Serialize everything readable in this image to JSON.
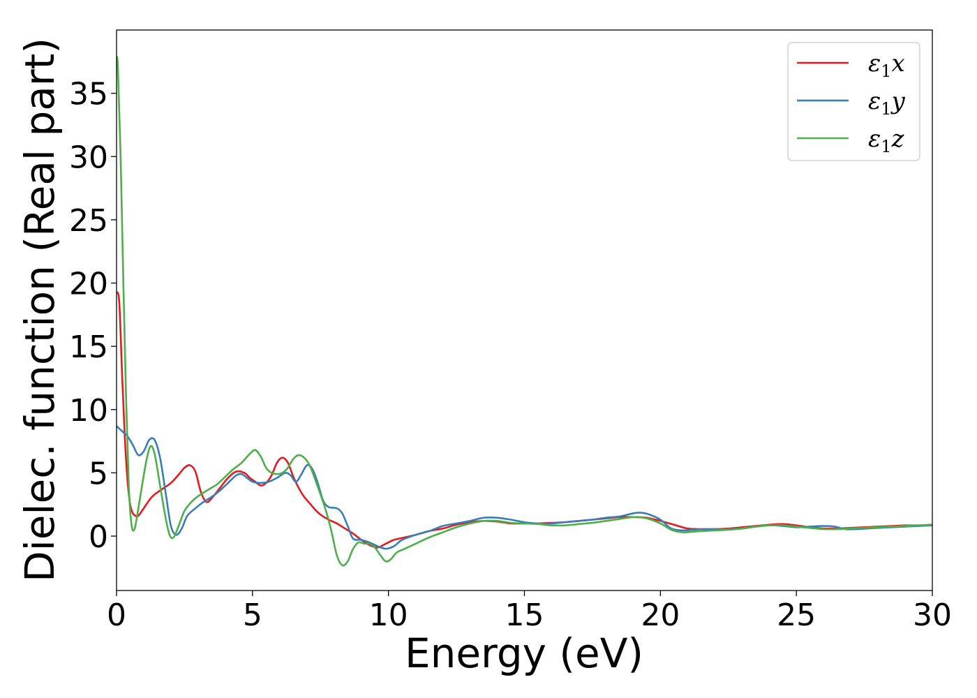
{
  "chart_data": {
    "type": "line",
    "xlabel": "Energy (eV)",
    "ylabel": "Dielec. function (Real part)",
    "xlim": [
      0,
      30
    ],
    "ylim": [
      -4.3,
      40
    ],
    "xticks": [
      0,
      5,
      10,
      15,
      20,
      25,
      30
    ],
    "yticks": [
      0,
      5,
      10,
      15,
      20,
      25,
      30,
      35
    ],
    "legend_position": "top-right",
    "grid": false,
    "series": [
      {
        "name": "ε₁x",
        "legend_base": "ε",
        "legend_sub": "1",
        "legend_suffix": "x",
        "color": "#e41a1c",
        "points": [
          [
            0,
            19.3
          ],
          [
            0.1,
            18.5
          ],
          [
            0.2,
            13
          ],
          [
            0.3,
            8
          ],
          [
            0.4,
            4.5
          ],
          [
            0.5,
            2.5
          ],
          [
            0.6,
            1.8
          ],
          [
            0.7,
            1.6
          ],
          [
            0.8,
            1.6
          ],
          [
            1.0,
            2.2
          ],
          [
            1.3,
            3.1
          ],
          [
            1.6,
            3.6
          ],
          [
            2.0,
            4.2
          ],
          [
            2.3,
            4.9
          ],
          [
            2.5,
            5.4
          ],
          [
            2.7,
            5.6
          ],
          [
            2.9,
            5.1
          ],
          [
            3.1,
            3.5
          ],
          [
            3.3,
            2.7
          ],
          [
            3.5,
            3.0
          ],
          [
            3.8,
            3.8
          ],
          [
            4.1,
            4.6
          ],
          [
            4.4,
            5.1
          ],
          [
            4.7,
            5.0
          ],
          [
            4.9,
            4.6
          ],
          [
            5.1,
            4.3
          ],
          [
            5.3,
            4.0
          ],
          [
            5.5,
            4.2
          ],
          [
            5.7,
            4.8
          ],
          [
            5.9,
            5.8
          ],
          [
            6.1,
            6.2
          ],
          [
            6.3,
            5.8
          ],
          [
            6.5,
            4.7
          ],
          [
            6.7,
            3.8
          ],
          [
            6.9,
            3.1
          ],
          [
            7.1,
            2.6
          ],
          [
            7.3,
            2.1
          ],
          [
            7.5,
            1.7
          ],
          [
            7.8,
            1.3
          ],
          [
            8.1,
            1.0
          ],
          [
            8.4,
            0.6
          ],
          [
            8.7,
            0.2
          ],
          [
            9.0,
            -0.3
          ],
          [
            9.3,
            -0.7
          ],
          [
            9.6,
            -0.9
          ],
          [
            9.9,
            -0.6
          ],
          [
            10.2,
            -0.3
          ],
          [
            10.6,
            -0.1
          ],
          [
            11,
            0.1
          ],
          [
            11.5,
            0.4
          ],
          [
            12,
            0.6
          ],
          [
            12.5,
            0.9
          ],
          [
            13,
            1.1
          ],
          [
            13.5,
            1.2
          ],
          [
            14,
            1.15
          ],
          [
            14.5,
            1.0
          ],
          [
            15,
            1.0
          ],
          [
            15.5,
            1.0
          ],
          [
            16,
            1.05
          ],
          [
            16.5,
            1.1
          ],
          [
            17,
            1.2
          ],
          [
            17.5,
            1.3
          ],
          [
            18,
            1.4
          ],
          [
            18.5,
            1.5
          ],
          [
            19,
            1.5
          ],
          [
            19.5,
            1.45
          ],
          [
            20,
            1.2
          ],
          [
            20.5,
            0.9
          ],
          [
            21,
            0.6
          ],
          [
            21.5,
            0.55
          ],
          [
            22,
            0.55
          ],
          [
            22.5,
            0.6
          ],
          [
            23,
            0.7
          ],
          [
            23.5,
            0.8
          ],
          [
            24,
            0.9
          ],
          [
            24.5,
            0.95
          ],
          [
            25,
            0.85
          ],
          [
            25.5,
            0.7
          ],
          [
            26,
            0.6
          ],
          [
            26.5,
            0.6
          ],
          [
            27,
            0.65
          ],
          [
            27.5,
            0.7
          ],
          [
            28,
            0.75
          ],
          [
            28.5,
            0.8
          ],
          [
            29,
            0.85
          ],
          [
            29.5,
            0.85
          ],
          [
            30,
            0.9
          ]
        ]
      },
      {
        "name": "ε₁y",
        "legend_base": "ε",
        "legend_sub": "1",
        "legend_suffix": "y",
        "color": "#377eb8",
        "points": [
          [
            0,
            8.7
          ],
          [
            0.2,
            8.3
          ],
          [
            0.4,
            7.9
          ],
          [
            0.6,
            7.2
          ],
          [
            0.8,
            6.4
          ],
          [
            1.0,
            6.7
          ],
          [
            1.2,
            7.6
          ],
          [
            1.4,
            7.6
          ],
          [
            1.6,
            6.2
          ],
          [
            1.8,
            3.5
          ],
          [
            2.0,
            0.8
          ],
          [
            2.2,
            0.1
          ],
          [
            2.4,
            0.6
          ],
          [
            2.6,
            1.6
          ],
          [
            2.9,
            2.2
          ],
          [
            3.2,
            2.7
          ],
          [
            3.5,
            3.1
          ],
          [
            3.8,
            3.6
          ],
          [
            4.1,
            4.2
          ],
          [
            4.4,
            4.8
          ],
          [
            4.6,
            4.9
          ],
          [
            4.8,
            4.6
          ],
          [
            5.0,
            4.3
          ],
          [
            5.3,
            4.2
          ],
          [
            5.6,
            4.3
          ],
          [
            5.9,
            4.6
          ],
          [
            6.2,
            5.0
          ],
          [
            6.4,
            4.8
          ],
          [
            6.6,
            4.3
          ],
          [
            6.8,
            4.9
          ],
          [
            7.0,
            5.6
          ],
          [
            7.2,
            5.3
          ],
          [
            7.4,
            4.2
          ],
          [
            7.6,
            2.8
          ],
          [
            7.8,
            2.3
          ],
          [
            8.1,
            2.2
          ],
          [
            8.3,
            1.8
          ],
          [
            8.5,
            0.8
          ],
          [
            8.7,
            -0.2
          ],
          [
            9.0,
            -0.3
          ],
          [
            9.3,
            -0.5
          ],
          [
            9.6,
            -0.8
          ],
          [
            9.9,
            -1.0
          ],
          [
            10.2,
            -0.8
          ],
          [
            10.5,
            -0.3
          ],
          [
            11,
            0.1
          ],
          [
            11.5,
            0.4
          ],
          [
            12,
            0.8
          ],
          [
            12.5,
            1.0
          ],
          [
            13,
            1.2
          ],
          [
            13.5,
            1.45
          ],
          [
            14,
            1.45
          ],
          [
            14.5,
            1.3
          ],
          [
            15,
            1.1
          ],
          [
            15.5,
            1.0
          ],
          [
            16,
            1.0
          ],
          [
            16.5,
            1.1
          ],
          [
            17,
            1.2
          ],
          [
            17.5,
            1.3
          ],
          [
            18,
            1.45
          ],
          [
            18.5,
            1.55
          ],
          [
            19,
            1.8
          ],
          [
            19.3,
            1.85
          ],
          [
            19.6,
            1.7
          ],
          [
            20,
            1.3
          ],
          [
            20.4,
            0.6
          ],
          [
            20.8,
            0.45
          ],
          [
            21.2,
            0.5
          ],
          [
            21.6,
            0.55
          ],
          [
            22,
            0.55
          ],
          [
            22.5,
            0.55
          ],
          [
            23,
            0.6
          ],
          [
            23.5,
            0.75
          ],
          [
            24,
            0.85
          ],
          [
            24.5,
            0.8
          ],
          [
            25,
            0.7
          ],
          [
            25.5,
            0.75
          ],
          [
            26,
            0.8
          ],
          [
            26.4,
            0.75
          ],
          [
            26.8,
            0.55
          ],
          [
            27.2,
            0.55
          ],
          [
            27.6,
            0.6
          ],
          [
            28,
            0.65
          ],
          [
            28.5,
            0.7
          ],
          [
            29,
            0.75
          ],
          [
            29.5,
            0.8
          ],
          [
            30,
            0.85
          ]
        ]
      },
      {
        "name": "ε₁z",
        "legend_base": "ε",
        "legend_sub": "1",
        "legend_suffix": "z",
        "color": "#4daf4a",
        "points": [
          [
            0,
            37.9
          ],
          [
            0.05,
            37
          ],
          [
            0.15,
            30
          ],
          [
            0.25,
            20
          ],
          [
            0.35,
            11
          ],
          [
            0.45,
            4
          ],
          [
            0.55,
            0.9
          ],
          [
            0.65,
            0.5
          ],
          [
            0.75,
            1.5
          ],
          [
            0.9,
            3.5
          ],
          [
            1.1,
            6.0
          ],
          [
            1.25,
            7.1
          ],
          [
            1.4,
            6.5
          ],
          [
            1.6,
            4.0
          ],
          [
            1.8,
            1.5
          ],
          [
            1.95,
            0.1
          ],
          [
            2.1,
            -0.1
          ],
          [
            2.3,
            0.9
          ],
          [
            2.5,
            2.0
          ],
          [
            2.8,
            2.8
          ],
          [
            3.1,
            3.3
          ],
          [
            3.4,
            3.7
          ],
          [
            3.7,
            4.1
          ],
          [
            4.0,
            4.7
          ],
          [
            4.3,
            5.3
          ],
          [
            4.6,
            5.8
          ],
          [
            4.9,
            6.5
          ],
          [
            5.1,
            6.8
          ],
          [
            5.3,
            6.3
          ],
          [
            5.5,
            5.4
          ],
          [
            5.7,
            5.0
          ],
          [
            5.9,
            4.9
          ],
          [
            6.1,
            5.0
          ],
          [
            6.3,
            5.4
          ],
          [
            6.5,
            6.1
          ],
          [
            6.7,
            6.4
          ],
          [
            6.9,
            6.2
          ],
          [
            7.1,
            5.6
          ],
          [
            7.3,
            4.5
          ],
          [
            7.5,
            3.3
          ],
          [
            7.7,
            2.0
          ],
          [
            7.9,
            0.4
          ],
          [
            8.1,
            -1.5
          ],
          [
            8.3,
            -2.3
          ],
          [
            8.5,
            -2.0
          ],
          [
            8.7,
            -1.0
          ],
          [
            8.9,
            -0.5
          ],
          [
            9.1,
            -0.6
          ],
          [
            9.3,
            -0.6
          ],
          [
            9.5,
            -0.9
          ],
          [
            9.7,
            -1.5
          ],
          [
            9.9,
            -2.0
          ],
          [
            10.1,
            -1.8
          ],
          [
            10.3,
            -1.3
          ],
          [
            10.6,
            -1.0
          ],
          [
            11,
            -0.6
          ],
          [
            11.5,
            -0.1
          ],
          [
            12,
            0.3
          ],
          [
            12.5,
            0.7
          ],
          [
            13,
            1.0
          ],
          [
            13.5,
            1.2
          ],
          [
            14,
            1.2
          ],
          [
            14.5,
            1.05
          ],
          [
            15,
            1.0
          ],
          [
            15.5,
            0.95
          ],
          [
            16,
            0.85
          ],
          [
            16.5,
            0.85
          ],
          [
            17,
            0.95
          ],
          [
            17.5,
            1.05
          ],
          [
            18,
            1.2
          ],
          [
            18.5,
            1.35
          ],
          [
            19,
            1.5
          ],
          [
            19.5,
            1.4
          ],
          [
            20,
            1.0
          ],
          [
            20.4,
            0.5
          ],
          [
            20.8,
            0.3
          ],
          [
            21.2,
            0.35
          ],
          [
            21.6,
            0.4
          ],
          [
            22,
            0.45
          ],
          [
            22.5,
            0.5
          ],
          [
            23,
            0.6
          ],
          [
            23.5,
            0.75
          ],
          [
            24,
            0.85
          ],
          [
            24.5,
            0.85
          ],
          [
            25,
            0.75
          ],
          [
            25.5,
            0.65
          ],
          [
            26,
            0.55
          ],
          [
            26.5,
            0.55
          ],
          [
            27,
            0.6
          ],
          [
            27.5,
            0.65
          ],
          [
            28,
            0.7
          ],
          [
            28.5,
            0.75
          ],
          [
            29,
            0.8
          ],
          [
            29.5,
            0.85
          ],
          [
            30,
            0.9
          ]
        ]
      }
    ]
  }
}
